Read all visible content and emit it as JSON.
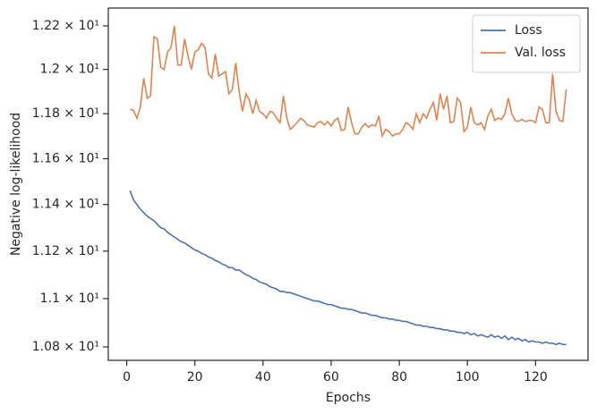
{
  "chart_data": {
    "type": "line",
    "x_label": "Epochs",
    "y_label": "Negative log-likelihood",
    "x": [
      1,
      2,
      3,
      4,
      5,
      6,
      7,
      8,
      9,
      10,
      11,
      12,
      13,
      14,
      15,
      16,
      17,
      18,
      19,
      20,
      21,
      22,
      23,
      24,
      25,
      26,
      27,
      28,
      29,
      30,
      31,
      32,
      33,
      34,
      35,
      36,
      37,
      38,
      39,
      40,
      41,
      42,
      43,
      44,
      45,
      46,
      47,
      48,
      49,
      50,
      51,
      52,
      53,
      54,
      55,
      56,
      57,
      58,
      59,
      60,
      61,
      62,
      63,
      64,
      65,
      66,
      67,
      68,
      69,
      70,
      71,
      72,
      73,
      74,
      75,
      76,
      77,
      78,
      79,
      80,
      81,
      82,
      83,
      84,
      85,
      86,
      87,
      88,
      89,
      90,
      91,
      92,
      93,
      94,
      95,
      96,
      97,
      98,
      99,
      100,
      101,
      102,
      103,
      104,
      105,
      106,
      107,
      108,
      109,
      110,
      111,
      112,
      113,
      114,
      115,
      116,
      117,
      118,
      119,
      120,
      121,
      122,
      123,
      124,
      125,
      126,
      127,
      128,
      129
    ],
    "series": [
      {
        "name": "Loss",
        "color": "#4c72b0",
        "values": [
          11.46,
          11.42,
          11.4,
          11.38,
          11.365,
          11.35,
          11.34,
          11.33,
          11.315,
          11.3,
          11.295,
          11.28,
          11.27,
          11.26,
          11.25,
          11.24,
          11.235,
          11.225,
          11.215,
          11.205,
          11.2,
          11.19,
          11.185,
          11.175,
          11.17,
          11.16,
          11.155,
          11.145,
          11.14,
          11.13,
          11.13,
          11.12,
          11.12,
          11.11,
          11.1,
          11.095,
          11.085,
          11.08,
          11.07,
          11.065,
          11.06,
          11.05,
          11.045,
          11.04,
          11.03,
          11.03,
          11.025,
          11.025,
          11.02,
          11.015,
          11.01,
          11.005,
          11.0,
          10.995,
          10.99,
          10.99,
          10.985,
          10.98,
          10.975,
          10.975,
          10.97,
          10.965,
          10.96,
          10.96,
          10.955,
          10.955,
          10.95,
          10.945,
          10.94,
          10.94,
          10.935,
          10.93,
          10.93,
          10.925,
          10.92,
          10.92,
          10.915,
          10.915,
          10.91,
          10.91,
          10.905,
          10.905,
          10.9,
          10.895,
          10.89,
          10.89,
          10.885,
          10.885,
          10.88,
          10.88,
          10.875,
          10.875,
          10.87,
          10.87,
          10.865,
          10.865,
          10.86,
          10.86,
          10.855,
          10.86,
          10.85,
          10.855,
          10.845,
          10.85,
          10.845,
          10.84,
          10.85,
          10.84,
          10.845,
          10.835,
          10.845,
          10.83,
          10.84,
          10.83,
          10.835,
          10.825,
          10.83,
          10.82,
          10.825,
          10.82,
          10.82,
          10.815,
          10.82,
          10.815,
          10.815,
          10.81,
          10.815,
          10.81,
          10.81
        ]
      },
      {
        "name": "Val. loss",
        "color": "#dd8452",
        "values": [
          11.82,
          11.815,
          11.78,
          11.83,
          11.96,
          11.87,
          11.88,
          12.15,
          12.14,
          12.01,
          12.0,
          12.08,
          12.1,
          12.2,
          12.02,
          12.02,
          12.14,
          12.06,
          12.0,
          12.08,
          12.09,
          12.12,
          12.1,
          11.98,
          11.96,
          12.07,
          11.97,
          11.98,
          11.99,
          11.89,
          11.91,
          12.03,
          11.9,
          11.81,
          11.89,
          11.86,
          11.8,
          11.86,
          11.81,
          11.8,
          11.78,
          11.81,
          11.805,
          11.78,
          11.76,
          11.88,
          11.78,
          11.73,
          11.745,
          11.76,
          11.78,
          11.77,
          11.75,
          11.745,
          11.74,
          11.76,
          11.765,
          11.75,
          11.765,
          11.745,
          11.77,
          11.78,
          11.725,
          11.73,
          11.83,
          11.76,
          11.71,
          11.71,
          11.74,
          11.755,
          11.74,
          11.75,
          11.745,
          11.79,
          11.7,
          11.73,
          11.72,
          11.7,
          11.71,
          11.71,
          11.73,
          11.76,
          11.75,
          11.73,
          11.8,
          11.76,
          11.8,
          11.78,
          11.82,
          11.85,
          11.77,
          11.89,
          11.82,
          11.88,
          11.76,
          11.765,
          11.87,
          11.85,
          11.72,
          11.74,
          11.83,
          11.76,
          11.75,
          11.76,
          11.73,
          11.79,
          11.82,
          11.77,
          11.78,
          11.775,
          11.8,
          11.87,
          11.8,
          11.77,
          11.765,
          11.775,
          11.765,
          11.77,
          11.77,
          11.76,
          11.83,
          11.82,
          11.76,
          11.76,
          11.98,
          11.81,
          11.77,
          11.765,
          11.91
        ]
      }
    ],
    "xlim": [
      -5.4,
      135.4
    ],
    "xticks": [
      0,
      20,
      40,
      60,
      80,
      100,
      120
    ],
    "ylim": [
      10.745,
      12.283
    ],
    "yscale": "log",
    "yticks": [
      {
        "value": 10.8,
        "label": "1.08 × 10¹"
      },
      {
        "value": 11.0,
        "label": "1.1 × 10¹"
      },
      {
        "value": 11.2,
        "label": "1.12 × 10¹"
      },
      {
        "value": 11.4,
        "label": "1.14 × 10¹"
      },
      {
        "value": 11.6,
        "label": "1.16 × 10¹"
      },
      {
        "value": 11.8,
        "label": "1.18 × 10¹"
      },
      {
        "value": 12.0,
        "label": "1.2 × 10¹"
      },
      {
        "value": 12.2,
        "label": "1.22 × 10¹"
      }
    ],
    "legend": "upper right",
    "grid": false
  }
}
